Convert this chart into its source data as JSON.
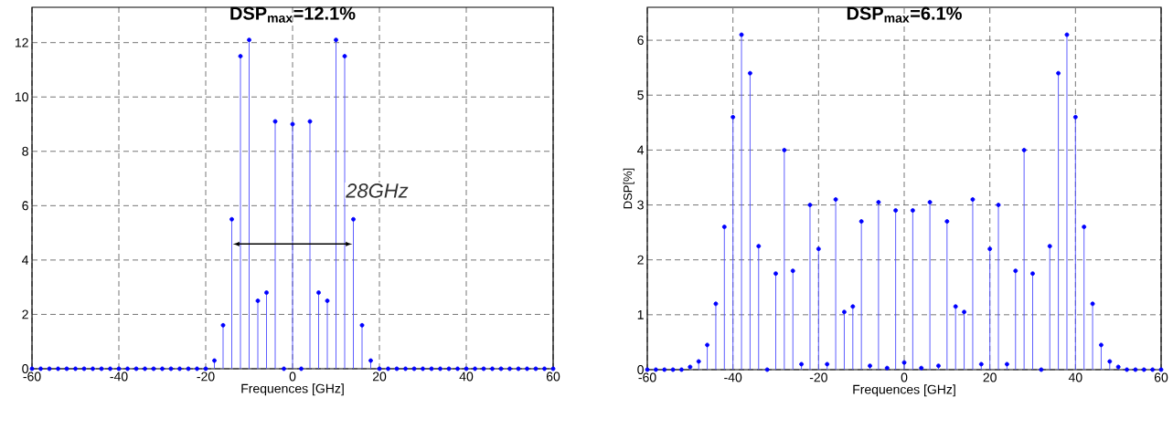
{
  "chart_data": [
    {
      "type": "lollipop",
      "title": "DSP$_{max}$=12.1%",
      "xlabel": "Frequences [GHz]",
      "color": "#0000ff",
      "marker": "circle",
      "grid": true,
      "x": [
        -60,
        -58,
        -56,
        -54,
        -52,
        -50,
        -48,
        -46,
        -44,
        -42,
        -40,
        -38,
        -36,
        -34,
        -32,
        -30,
        -28,
        -26,
        -24,
        -22,
        -20,
        -18,
        -16,
        -14,
        -12,
        -10,
        -8,
        -6,
        -4,
        -2,
        0,
        2,
        4,
        6,
        8,
        10,
        12,
        14,
        16,
        18,
        20,
        22,
        24,
        26,
        28,
        30,
        32,
        34,
        36,
        38,
        40,
        42,
        44,
        46,
        48,
        50,
        52,
        54,
        56,
        58,
        60
      ],
      "values": [
        0,
        0,
        0,
        0,
        0,
        0,
        0,
        0,
        0,
        0,
        0,
        0,
        0,
        0,
        0,
        0,
        0,
        0,
        0,
        0,
        0,
        0.3,
        1.6,
        5.5,
        11.5,
        12.1,
        2.5,
        2.8,
        9.1,
        0,
        9.0,
        0,
        9.1,
        2.8,
        2.5,
        12.1,
        11.5,
        5.5,
        1.6,
        0.3,
        0,
        0,
        0,
        0,
        0,
        0,
        0,
        0,
        0,
        0,
        0,
        0,
        0,
        0,
        0,
        0,
        0,
        0,
        0,
        0,
        0
      ],
      "xlim": [
        -60,
        60
      ],
      "xticks": [
        -60,
        -40,
        -20,
        0,
        20,
        40,
        60
      ],
      "ylim": [
        0,
        13.3
      ],
      "yticks": [
        0,
        2,
        4,
        6,
        8,
        10,
        12
      ],
      "annotations": [
        "28GHz"
      ]
    },
    {
      "type": "lollipop",
      "title": "DSP$_{max}$=6.1%",
      "xlabel": "Frequences [GHz]",
      "ylabel": "DSP[%]",
      "color": "#0000ff",
      "marker": "circle",
      "grid": true,
      "x": [
        -60,
        -58,
        -56,
        -54,
        -52,
        -50,
        -48,
        -46,
        -44,
        -42,
        -40,
        -38,
        -36,
        -34,
        -32,
        -30,
        -28,
        -26,
        -24,
        -22,
        -20,
        -18,
        -16,
        -14,
        -12,
        -10,
        -8,
        -6,
        -4,
        -2,
        0,
        2,
        4,
        6,
        8,
        10,
        12,
        14,
        16,
        18,
        20,
        22,
        24,
        26,
        28,
        30,
        32,
        34,
        36,
        38,
        40,
        42,
        44,
        46,
        48,
        50,
        52,
        54,
        56,
        58,
        60
      ],
      "values": [
        0,
        0,
        0,
        0,
        0,
        0.05,
        0.15,
        0.45,
        1.2,
        2.6,
        4.6,
        6.1,
        5.4,
        2.25,
        0,
        1.75,
        4.0,
        1.8,
        0.1,
        3.0,
        2.2,
        0.1,
        3.1,
        1.05,
        1.15,
        2.7,
        0.07,
        3.05,
        0.03,
        2.9,
        0.13,
        2.9,
        0.03,
        3.05,
        0.07,
        2.7,
        1.15,
        1.05,
        3.1,
        0.1,
        2.2,
        3.0,
        0.1,
        1.8,
        4.0,
        1.75,
        0,
        2.25,
        5.4,
        6.1,
        4.6,
        2.6,
        1.2,
        0.45,
        0.15,
        0.05,
        0,
        0,
        0,
        0,
        0
      ],
      "xlim": [
        -60,
        60
      ],
      "xticks": [
        -60,
        -40,
        -20,
        0,
        20,
        40,
        60
      ],
      "ylim": [
        0,
        6.6
      ],
      "yticks": [
        0,
        1,
        2,
        3,
        4,
        5,
        6
      ]
    }
  ]
}
